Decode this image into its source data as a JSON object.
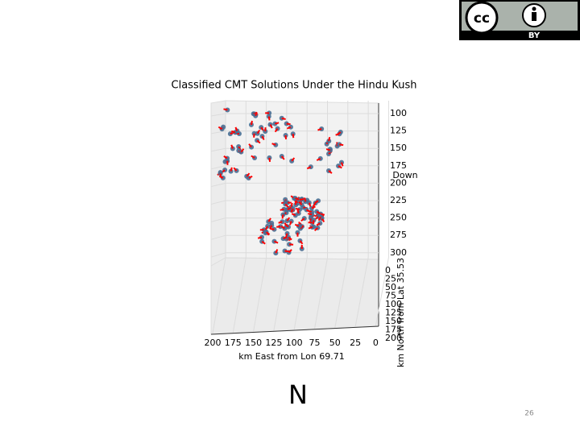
{
  "badge": {
    "label": "BY"
  },
  "figure": {
    "title": "Classified CMT Solutions Under the Hindu Kush",
    "z_label": "Down",
    "z_ticks": [
      100,
      125,
      150,
      175,
      200,
      225,
      250,
      275,
      300
    ],
    "y_label": "km North from Lat 35.53",
    "y_ticks": [
      0,
      25,
      50,
      75,
      100,
      125,
      150,
      175,
      200
    ],
    "x_label": "km East from Lon 69.71",
    "x_ticks": [
      200,
      175,
      150,
      125,
      100,
      75,
      50,
      25,
      0
    ]
  },
  "caption": "N",
  "page_number": "26"
}
